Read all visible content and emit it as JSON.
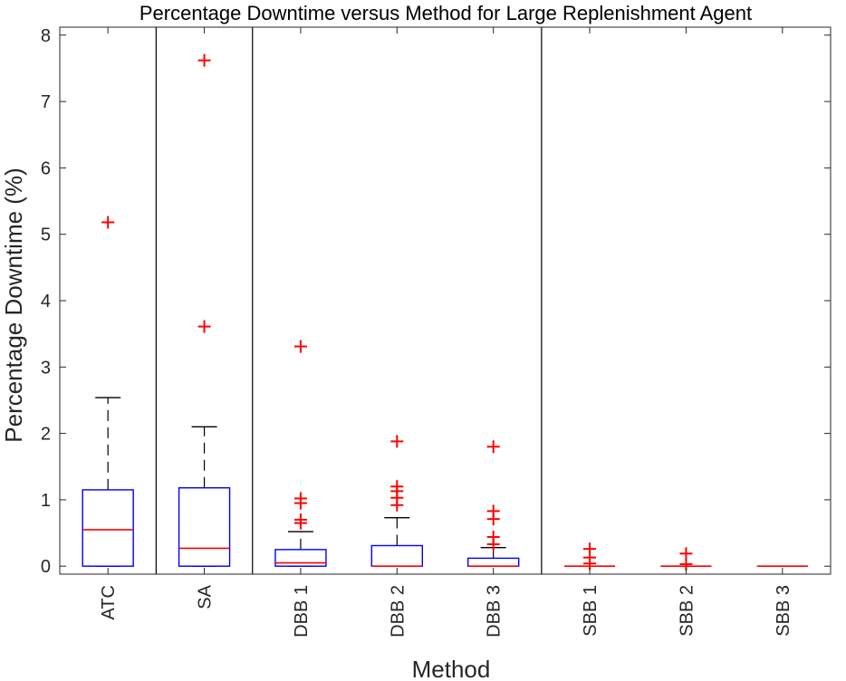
{
  "chart_data": {
    "type": "boxplot",
    "title": "Percentage Downtime versus Method for Large Replenishment Agent",
    "xlabel": "Method",
    "ylabel": "Percentage Downtime (%)",
    "ylim": [
      -0.12,
      8.12
    ],
    "yticks": [
      0,
      1,
      2,
      3,
      4,
      5,
      6,
      7,
      8
    ],
    "categories": [
      "ATC",
      "SA",
      "DBB 1",
      "DBB 2",
      "DBB 3",
      "SBB 1",
      "SBB 2",
      "SBB 3"
    ],
    "group_separators_after": [
      "ATC",
      "SA",
      "DBB 3"
    ],
    "boxes": [
      {
        "label": "ATC",
        "q1": 0,
        "median": 0.55,
        "q3": 1.15,
        "whisker_low": 0,
        "whisker_high": 2.54,
        "outliers": [
          5.18
        ]
      },
      {
        "label": "SA",
        "q1": 0,
        "median": 0.27,
        "q3": 1.18,
        "whisker_low": 0,
        "whisker_high": 2.1,
        "outliers": [
          3.61,
          7.62
        ]
      },
      {
        "label": "DBB 1",
        "q1": 0,
        "median": 0.05,
        "q3": 0.25,
        "whisker_low": 0,
        "whisker_high": 0.52,
        "outliers": [
          0.65,
          0.7,
          0.95,
          1.02,
          3.31
        ]
      },
      {
        "label": "DBB 2",
        "q1": 0,
        "median": 0,
        "q3": 0.31,
        "whisker_low": 0,
        "whisker_high": 0.73,
        "outliers": [
          0.92,
          1.03,
          1.13,
          1.2,
          1.88
        ]
      },
      {
        "label": "DBB 3",
        "q1": 0,
        "median": 0,
        "q3": 0.12,
        "whisker_low": 0,
        "whisker_high": 0.28,
        "outliers": [
          0.33,
          0.44,
          0.71,
          0.83,
          1.8
        ]
      },
      {
        "label": "SBB 1",
        "q1": 0,
        "median": 0,
        "q3": 0,
        "whisker_low": 0,
        "whisker_high": 0,
        "outliers": [
          0.04,
          0.13,
          0.26
        ]
      },
      {
        "label": "SBB 2",
        "q1": 0,
        "median": 0,
        "q3": 0,
        "whisker_low": 0,
        "whisker_high": 0,
        "outliers": [
          0.03,
          0.19
        ]
      },
      {
        "label": "SBB 3",
        "q1": 0,
        "median": 0,
        "q3": 0,
        "whisker_low": 0,
        "whisker_high": 0,
        "outliers": []
      }
    ],
    "colors": {
      "box": "#0000ff",
      "median": "#ff0000",
      "outlier": "#ff0000",
      "whisker": "#000000",
      "axis": "#262626"
    }
  }
}
